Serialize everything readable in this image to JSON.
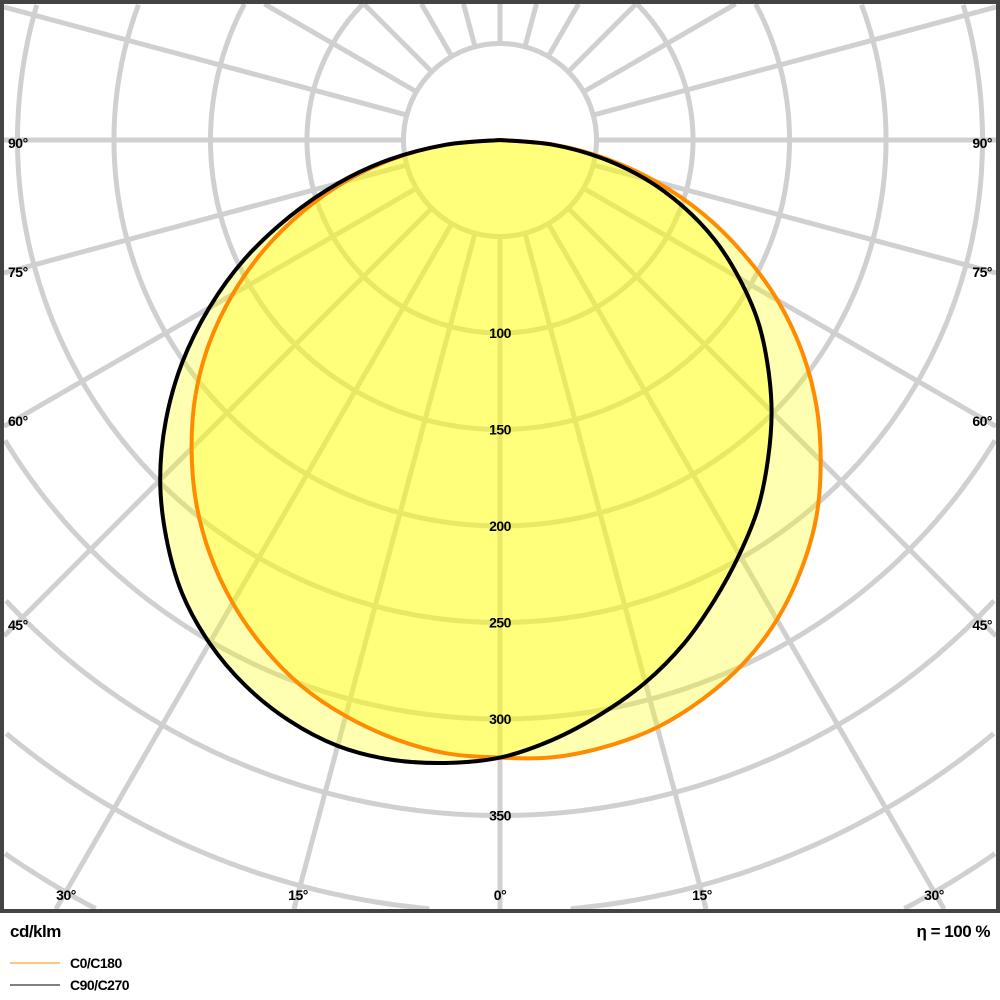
{
  "chart_data": {
    "type": "polar",
    "unit_label": "cd/klm",
    "efficiency_label": "η = 100 %",
    "radial_ticks": [
      100,
      150,
      200,
      250,
      300,
      350
    ],
    "radial_tick_labels": [
      "100",
      "150",
      "200",
      "250",
      "300",
      "350"
    ],
    "grid_ring_step": 50,
    "grid_angle_step_deg": 15,
    "side_angle_labels": [
      "90°",
      "75°",
      "60°",
      "45°"
    ],
    "side_angle_values": [
      90,
      75,
      60,
      45
    ],
    "bottom_angle_labels": [
      "30°",
      "15°",
      "0°",
      "15°",
      "30°"
    ],
    "bottom_angle_values": [
      -30,
      -15,
      0,
      15,
      30
    ],
    "grid": true,
    "legend_position": "bottom-left",
    "angles_deg": [
      0,
      5,
      10,
      15,
      20,
      25,
      30,
      35,
      40,
      45,
      50,
      55,
      60,
      65,
      70,
      75,
      80,
      85,
      90
    ],
    "series": [
      {
        "name": "C0/C180",
        "color": "#ff8c00",
        "right_plane": "C0",
        "left_plane": "C180",
        "right_values": [
          320,
          321,
          319,
          315,
          308,
          299,
          287,
          272,
          255,
          235,
          214,
          191,
          166,
          139,
          112,
          84,
          56,
          28,
          0
        ],
        "left_values": [
          320,
          319,
          315,
          309,
          301,
          290,
          277,
          262,
          245,
          226,
          206,
          184,
          160,
          135,
          109,
          83,
          56,
          28,
          0
        ]
      },
      {
        "name": "C90/C270",
        "color": "#000000",
        "right_plane": "C90",
        "left_plane": "C270",
        "right_values": [
          320,
          312,
          302,
          291,
          278,
          263,
          248,
          233,
          216,
          199,
          181,
          163,
          143,
          123,
          101,
          78,
          53,
          27,
          0
        ],
        "left_values": [
          320,
          324,
          326,
          325,
          320,
          312,
          301,
          287,
          269,
          249,
          226,
          201,
          174,
          146,
          116,
          87,
          58,
          28,
          0
        ]
      }
    ],
    "fill_color": "#ffff00",
    "grid_color": "#d0d0d0",
    "frame_color": "#444444"
  }
}
